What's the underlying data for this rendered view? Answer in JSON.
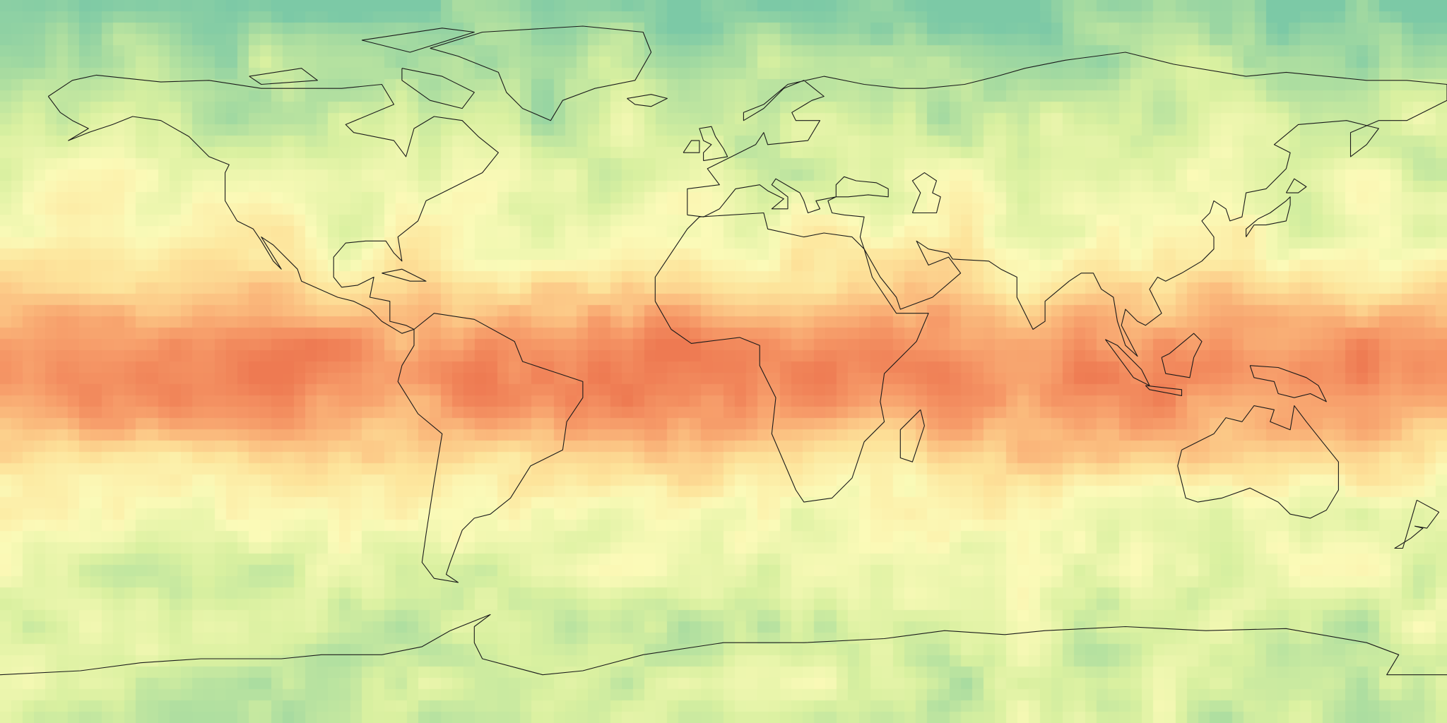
{
  "map": {
    "projection": "equirectangular",
    "extent": {
      "lon": [
        -180,
        180
      ],
      "lat": [
        -90,
        90
      ]
    },
    "layers": [
      "gridded-field",
      "coastlines"
    ],
    "colormap": [
      "#7cc9a6",
      "#a9dca0",
      "#d9f0a0",
      "#fbfab8",
      "#fde39a",
      "#fbbf80",
      "#f69a68",
      "#ee7a52"
    ],
    "coastline_color": "#1a1a1a",
    "legend": null
  }
}
